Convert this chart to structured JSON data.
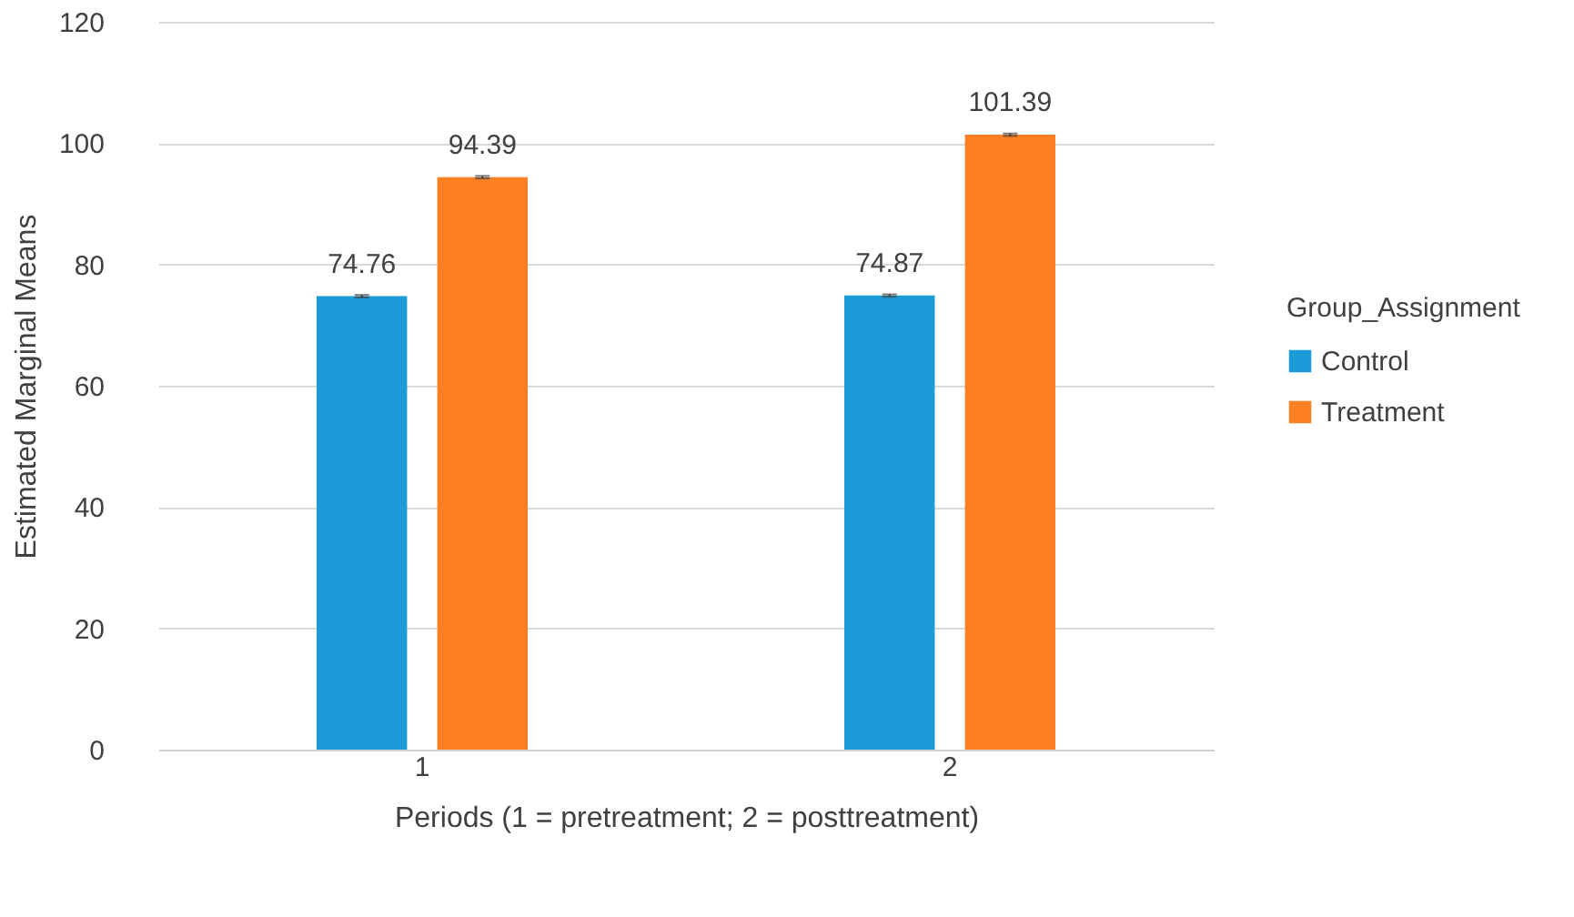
{
  "chart_data": {
    "type": "bar",
    "xlabel": "Periods (1 = pretreatment; 2 = posttreatment)",
    "ylabel": "Estimated Marginal Means",
    "legend_title": "Group_Assignment",
    "categories": [
      "1",
      "2"
    ],
    "series": [
      {
        "name": "Control",
        "color": "#1b9bd7",
        "values": [
          74.76,
          74.87
        ],
        "errors": [
          0.2,
          0.2
        ]
      },
      {
        "name": "Treatment",
        "color": "#fd7f23",
        "values": [
          94.39,
          101.39
        ],
        "errors": [
          0.2,
          0.2
        ]
      }
    ],
    "ylim": [
      0,
      120
    ],
    "yticks": [
      0,
      20,
      40,
      60,
      80,
      100,
      120
    ],
    "grid": "y",
    "legend": "right",
    "data_labels": true
  }
}
